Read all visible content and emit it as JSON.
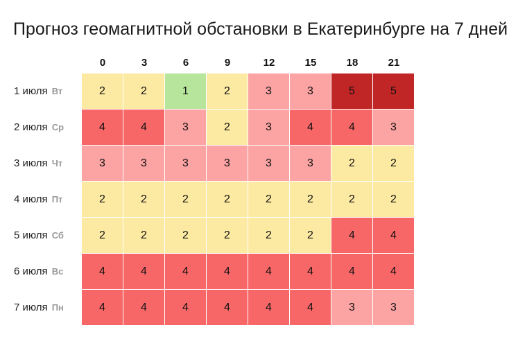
{
  "title": "Прогноз геомагнитной обстановки в Екатеринбурге на 7 дней",
  "colors": {
    "1": "#b7e59b",
    "2": "#fce9a2",
    "3": "#fca3a3",
    "4": "#f76767",
    "5": "#c12626"
  },
  "chart_data": {
    "type": "heatmap",
    "title": "Прогноз геомагнитной обстановки в Екатеринбурге на 7 дней",
    "x": [
      "0",
      "3",
      "6",
      "9",
      "12",
      "15",
      "18",
      "21"
    ],
    "rows": [
      {
        "day": "1 июля",
        "weekday": "Вт",
        "values": [
          2,
          2,
          1,
          2,
          3,
          3,
          5,
          5
        ]
      },
      {
        "day": "2 июля",
        "weekday": "Ср",
        "values": [
          4,
          4,
          3,
          2,
          3,
          4,
          4,
          3
        ]
      },
      {
        "day": "3 июля",
        "weekday": "Чт",
        "values": [
          3,
          3,
          3,
          3,
          3,
          3,
          2,
          2
        ]
      },
      {
        "day": "4 июля",
        "weekday": "Пт",
        "values": [
          2,
          2,
          2,
          2,
          2,
          2,
          2,
          2
        ]
      },
      {
        "day": "5 июля",
        "weekday": "Сб",
        "values": [
          2,
          2,
          2,
          2,
          2,
          2,
          4,
          4
        ]
      },
      {
        "day": "6 июля",
        "weekday": "Вс",
        "values": [
          4,
          4,
          4,
          4,
          4,
          4,
          4,
          4
        ]
      },
      {
        "day": "7 июля",
        "weekday": "Пн",
        "values": [
          4,
          4,
          4,
          4,
          4,
          4,
          3,
          3
        ]
      }
    ]
  }
}
